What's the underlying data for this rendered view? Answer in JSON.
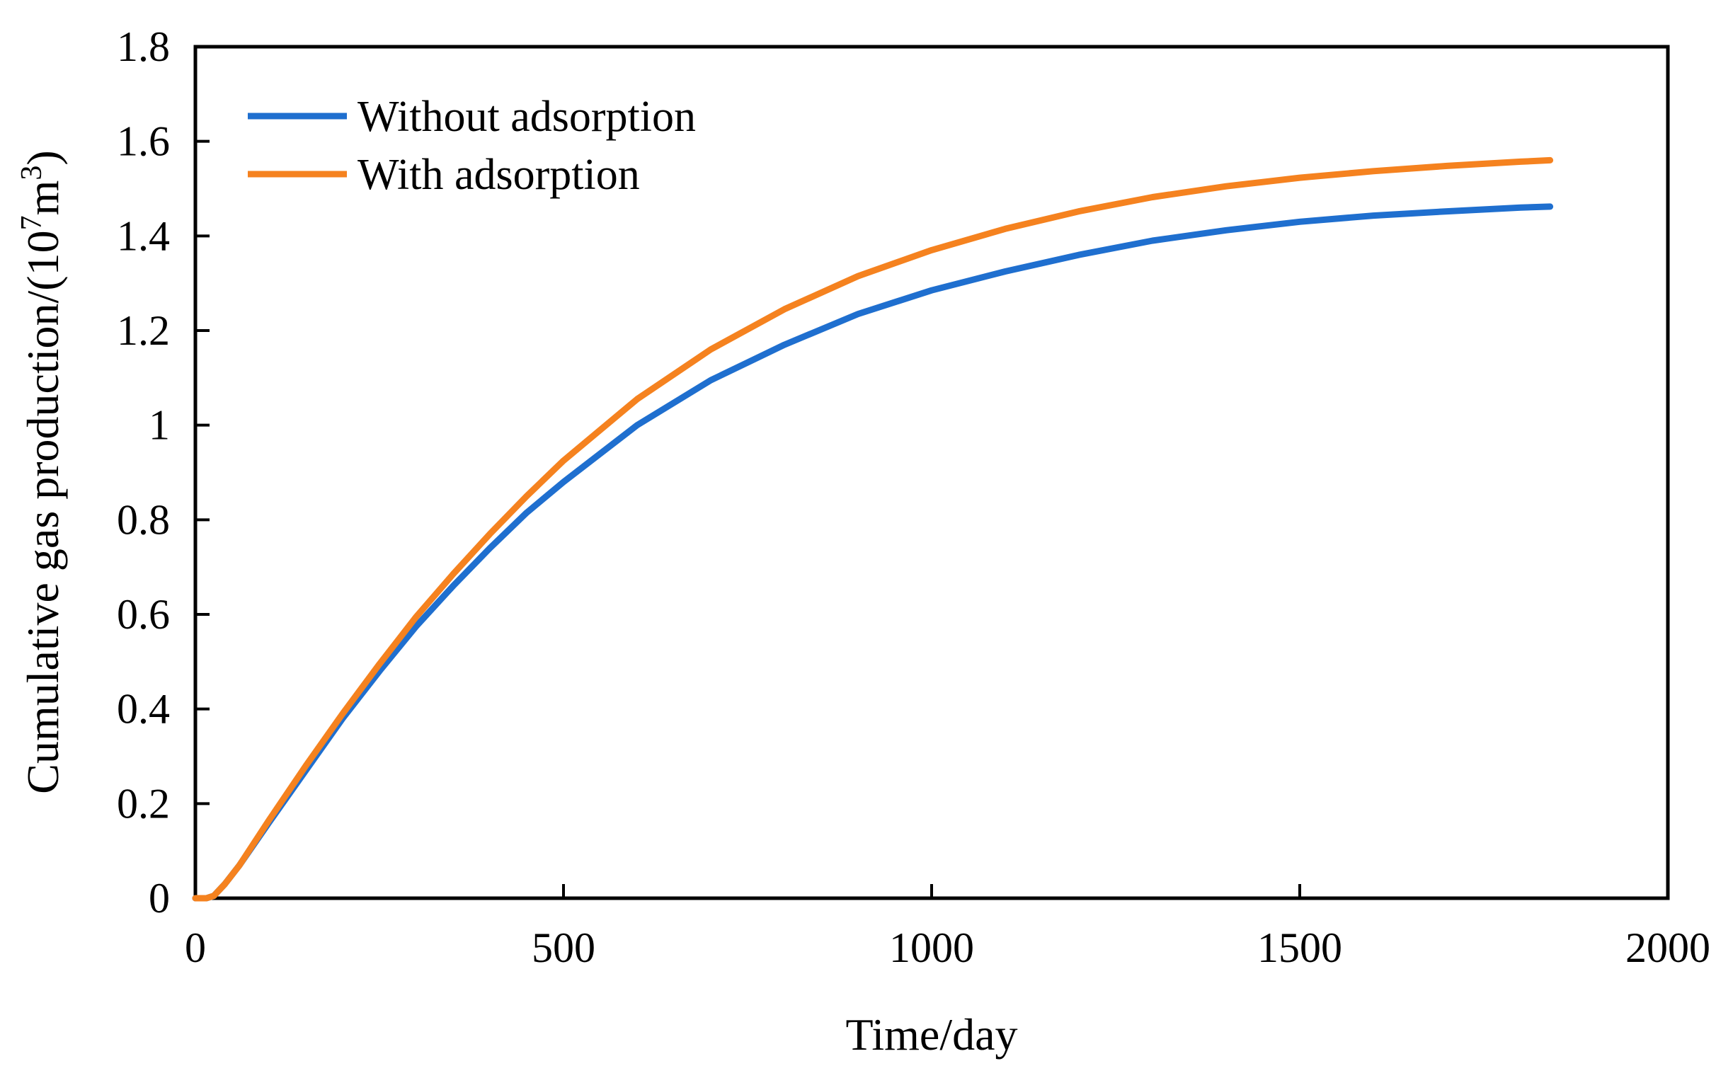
{
  "chart_data": {
    "type": "line",
    "title": "",
    "xlabel": "Time/day",
    "ylabel": {
      "prefix": "Cumulative gas production/(10",
      "exp1": "7",
      "mid": "m",
      "exp2": "3",
      "suffix": ")"
    },
    "xlim": [
      0,
      2000
    ],
    "ylim": [
      0,
      1.8
    ],
    "xticks": [
      "0",
      "500",
      "1000",
      "1500",
      "2000"
    ],
    "yticks": [
      "0",
      "0.2",
      "0.4",
      "0.6",
      "0.8",
      "1",
      "1.2",
      "1.4",
      "1.6",
      "1.8"
    ],
    "grid": false,
    "legend_position": "top-left",
    "series": [
      {
        "name": "Without adsorption",
        "color": "#1f6fcf",
        "x": [
          0,
          15,
          25,
          40,
          60,
          100,
          150,
          200,
          250,
          300,
          350,
          400,
          450,
          500,
          600,
          700,
          800,
          900,
          1000,
          1100,
          1200,
          1300,
          1400,
          1500,
          1600,
          1700,
          1800,
          1840
        ],
        "y": [
          0,
          0,
          0.005,
          0.03,
          0.07,
          0.16,
          0.27,
          0.38,
          0.48,
          0.575,
          0.66,
          0.74,
          0.815,
          0.88,
          1.0,
          1.095,
          1.17,
          1.235,
          1.285,
          1.325,
          1.36,
          1.39,
          1.412,
          1.43,
          1.443,
          1.452,
          1.46,
          1.462
        ]
      },
      {
        "name": "With adsorption",
        "color": "#f5821f",
        "x": [
          0,
          15,
          25,
          40,
          60,
          100,
          150,
          200,
          250,
          300,
          350,
          400,
          450,
          500,
          600,
          700,
          800,
          900,
          1000,
          1100,
          1200,
          1300,
          1400,
          1500,
          1600,
          1700,
          1800,
          1840
        ],
        "y": [
          0,
          0,
          0.005,
          0.03,
          0.07,
          0.165,
          0.28,
          0.39,
          0.495,
          0.595,
          0.685,
          0.77,
          0.85,
          0.925,
          1.055,
          1.16,
          1.245,
          1.315,
          1.37,
          1.415,
          1.452,
          1.482,
          1.505,
          1.523,
          1.537,
          1.548,
          1.557,
          1.56
        ]
      }
    ]
  }
}
